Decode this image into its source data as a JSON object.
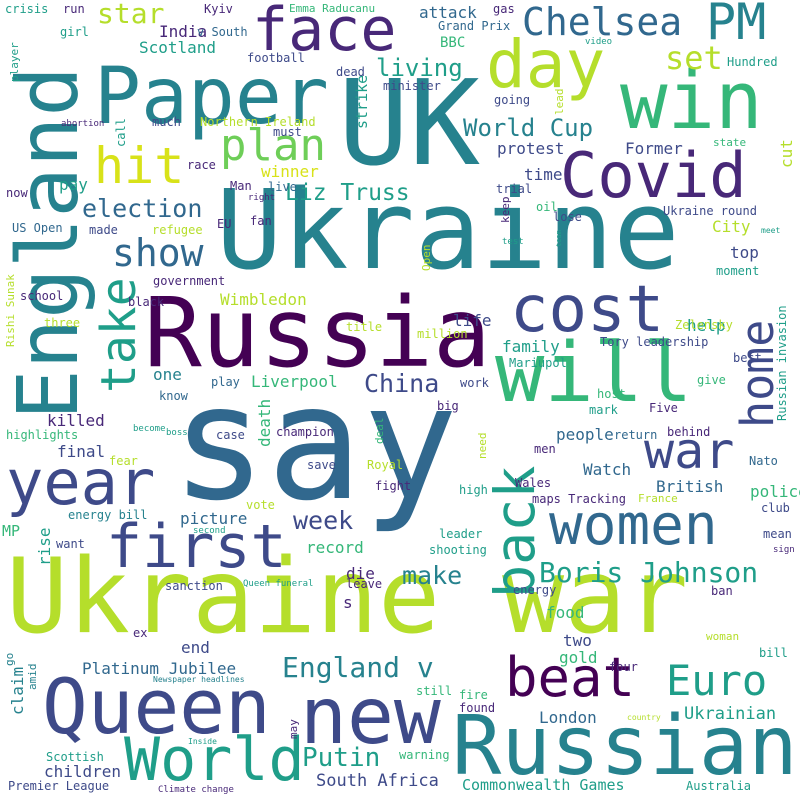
{
  "words": [
    {
      "text": "say",
      "color_class": "c3"
    },
    {
      "text": "Ukraine war",
      "color_class": "c8"
    },
    {
      "text": "Ukraine",
      "color_class": "c4"
    },
    {
      "text": "UK",
      "color_class": "c4"
    },
    {
      "text": "Russia",
      "color_class": "c0"
    },
    {
      "text": "Russian",
      "color_class": "c4"
    },
    {
      "text": "England",
      "color_class": "c4"
    },
    {
      "text": "win",
      "color_class": "c6"
    },
    {
      "text": "Paper",
      "color_class": "c4"
    },
    {
      "text": "will",
      "color_class": "c6"
    },
    {
      "text": "Queen",
      "color_class": "c2"
    },
    {
      "text": "new",
      "color_class": "c2"
    },
    {
      "text": "Covid",
      "color_class": "c1"
    },
    {
      "text": "World",
      "color_class": "c5"
    },
    {
      "text": "year",
      "color_class": "c2"
    },
    {
      "text": "women",
      "color_class": "c3"
    },
    {
      "text": "day",
      "color_class": "c8"
    },
    {
      "text": "face",
      "color_class": "c1"
    },
    {
      "text": "cost",
      "color_class": "c2"
    },
    {
      "text": "first",
      "color_class": "c2"
    },
    {
      "text": "beat",
      "color_class": "c0"
    },
    {
      "text": "hit",
      "color_class": "c9"
    },
    {
      "text": "take",
      "color_class": "c5"
    },
    {
      "text": "war",
      "color_class": "c2"
    },
    {
      "text": "home",
      "color_class": "c2"
    },
    {
      "text": "back",
      "color_class": "c5"
    },
    {
      "text": "PM",
      "color_class": "c4"
    },
    {
      "text": "Chelsea",
      "color_class": "c3"
    },
    {
      "text": "plan",
      "color_class": "c7"
    },
    {
      "text": "Euro",
      "color_class": "c5"
    },
    {
      "text": "show",
      "color_class": "c3"
    },
    {
      "text": "Boris Johnson",
      "color_class": "c5"
    },
    {
      "text": "England v",
      "color_class": "c4"
    },
    {
      "text": "election",
      "color_class": "c3"
    },
    {
      "text": "week",
      "color_class": "c2"
    },
    {
      "text": "Liz Truss",
      "color_class": "c5"
    },
    {
      "text": "China",
      "color_class": "c2"
    },
    {
      "text": "set",
      "color_class": "c8"
    },
    {
      "text": "living",
      "color_class": "c5"
    },
    {
      "text": "World Cup",
      "color_class": "c4"
    },
    {
      "text": "make",
      "color_class": "c4"
    },
    {
      "text": "Putin",
      "color_class": "c5"
    },
    {
      "text": "star",
      "color_class": "c8"
    },
    {
      "text": "children",
      "color_class": "c2"
    },
    {
      "text": "Platinum Jubilee",
      "color_class": "c3"
    },
    {
      "text": "Ukrainian",
      "color_class": "c5"
    },
    {
      "text": "South Africa",
      "color_class": "c2"
    },
    {
      "text": "Commonwealth Games",
      "color_class": "c5"
    },
    {
      "text": "Liverpool",
      "color_class": "c6"
    },
    {
      "text": "Wimbledon",
      "color_class": "c8"
    },
    {
      "text": "Scotland",
      "color_class": "c5"
    },
    {
      "text": "India",
      "color_class": "c1"
    },
    {
      "text": "City",
      "color_class": "c8"
    },
    {
      "text": "protest",
      "color_class": "c2"
    },
    {
      "text": "Former",
      "color_class": "c2"
    },
    {
      "text": "people",
      "color_class": "c3"
    },
    {
      "text": "Watch",
      "color_class": "c3"
    },
    {
      "text": "British",
      "color_class": "c3"
    },
    {
      "text": "police",
      "color_class": "c6"
    },
    {
      "text": "record",
      "color_class": "c6"
    },
    {
      "text": "killed",
      "color_class": "c1"
    },
    {
      "text": "final",
      "color_class": "c2"
    },
    {
      "text": "picture",
      "color_class": "c3"
    },
    {
      "text": "family",
      "color_class": "c5"
    },
    {
      "text": "life",
      "color_class": "c2"
    },
    {
      "text": "one",
      "color_class": "c4"
    },
    {
      "text": "time",
      "color_class": "c2"
    },
    {
      "text": "top",
      "color_class": "c2"
    },
    {
      "text": "help",
      "color_class": "c5"
    },
    {
      "text": "food",
      "color_class": "c6"
    },
    {
      "text": "gold",
      "color_class": "c6"
    },
    {
      "text": "two",
      "color_class": "c2"
    },
    {
      "text": "London",
      "color_class": "c3"
    },
    {
      "text": "end",
      "color_class": "c2"
    },
    {
      "text": "die",
      "color_class": "c1"
    },
    {
      "text": "s",
      "color_class": "c1"
    },
    {
      "text": "pay",
      "color_class": "c5"
    },
    {
      "text": "winner",
      "color_class": "c9"
    },
    {
      "text": "death",
      "color_class": "c6"
    },
    {
      "text": "cut",
      "color_class": "c8"
    },
    {
      "text": "claim",
      "color_class": "c4"
    },
    {
      "text": "rise",
      "color_class": "c5"
    },
    {
      "text": "attack",
      "color_class": "c3"
    },
    {
      "text": "Grand Prix",
      "color_class": "c3"
    },
    {
      "text": "BBC",
      "color_class": "c6"
    },
    {
      "text": "strike",
      "color_class": "c5"
    },
    {
      "text": "Northern Ireland",
      "color_class": "c8"
    },
    {
      "text": "Emma Raducanu",
      "color_class": "c6"
    },
    {
      "text": "Kyiv",
      "color_class": "c1"
    },
    {
      "text": "v South",
      "color_class": "c3"
    },
    {
      "text": "football",
      "color_class": "c2"
    },
    {
      "text": "minister",
      "color_class": "c2"
    },
    {
      "text": "gas",
      "color_class": "c1"
    },
    {
      "text": "girl",
      "color_class": "c5"
    },
    {
      "text": "run",
      "color_class": "c1"
    },
    {
      "text": "crisis",
      "color_class": "c5"
    },
    {
      "text": "player",
      "color_class": "c5"
    },
    {
      "text": "Hundred",
      "color_class": "c5"
    },
    {
      "text": "video",
      "color_class": "c5"
    },
    {
      "text": "lead",
      "color_class": "c8"
    },
    {
      "text": "going",
      "color_class": "c2"
    },
    {
      "text": "dead",
      "color_class": "c2"
    },
    {
      "text": "abortion",
      "color_class": "c1"
    },
    {
      "text": "call",
      "color_class": "c5"
    },
    {
      "text": "much",
      "color_class": "c2"
    },
    {
      "text": "must",
      "color_class": "c2"
    },
    {
      "text": "state",
      "color_class": "c6"
    },
    {
      "text": "race",
      "color_class": "c1"
    },
    {
      "text": "now",
      "color_class": "c1"
    },
    {
      "text": "Man",
      "color_class": "c1"
    },
    {
      "text": "live",
      "color_class": "c3"
    },
    {
      "text": "right",
      "color_class": "c1"
    },
    {
      "text": "trial",
      "color_class": "c2"
    },
    {
      "text": "oil",
      "color_class": "c6"
    },
    {
      "text": "fan",
      "color_class": "c1"
    },
    {
      "text": "EU",
      "color_class": "c1"
    },
    {
      "text": "US Open",
      "color_class": "c3"
    },
    {
      "text": "made",
      "color_class": "c2"
    },
    {
      "text": "refugee",
      "color_class": "c8"
    },
    {
      "text": "keep",
      "color_class": "c1"
    },
    {
      "text": "lose",
      "color_class": "c2"
    },
    {
      "text": "team",
      "color_class": "c5"
    },
    {
      "text": "test",
      "color_class": "c5"
    },
    {
      "text": "Ukraine round",
      "color_class": "c2"
    },
    {
      "text": "meet",
      "color_class": "c5"
    },
    {
      "text": "Open",
      "color_class": "c8"
    },
    {
      "text": "moment",
      "color_class": "c5"
    },
    {
      "text": "government",
      "color_class": "c1"
    },
    {
      "text": "school",
      "color_class": "c1"
    },
    {
      "text": "Rishi Sunak",
      "color_class": "c8"
    },
    {
      "text": "black",
      "color_class": "c1"
    },
    {
      "text": "title",
      "color_class": "c8"
    },
    {
      "text": "million",
      "color_class": "c8"
    },
    {
      "text": "three",
      "color_class": "c8"
    },
    {
      "text": "Zelensky",
      "color_class": "c8"
    },
    {
      "text": "Russian invasion",
      "color_class": "c5"
    },
    {
      "text": "Tory leadership",
      "color_class": "c2"
    },
    {
      "text": "best",
      "color_class": "c2"
    },
    {
      "text": "Mariupol",
      "color_class": "c5"
    },
    {
      "text": "give",
      "color_class": "c6"
    },
    {
      "text": "play",
      "color_class": "c3"
    },
    {
      "text": "know",
      "color_class": "c3"
    },
    {
      "text": "work",
      "color_class": "c2"
    },
    {
      "text": "big",
      "color_class": "c1"
    },
    {
      "text": "host",
      "color_class": "c6"
    },
    {
      "text": "mark",
      "color_class": "c5"
    },
    {
      "text": "Five",
      "color_class": "c1"
    },
    {
      "text": "highlights",
      "color_class": "c6"
    },
    {
      "text": "become",
      "color_class": "c5"
    },
    {
      "text": "boss",
      "color_class": "c5"
    },
    {
      "text": "case",
      "color_class": "c2"
    },
    {
      "text": "champion",
      "color_class": "c1"
    },
    {
      "text": "deal",
      "color_class": "c6"
    },
    {
      "text": "need",
      "color_class": "c8"
    },
    {
      "text": "return",
      "color_class": "c3"
    },
    {
      "text": "behind",
      "color_class": "c1"
    },
    {
      "text": "fear",
      "color_class": "c8"
    },
    {
      "text": "men",
      "color_class": "c1"
    },
    {
      "text": "Nato",
      "color_class": "c3"
    },
    {
      "text": "save",
      "color_class": "c2"
    },
    {
      "text": "Royal",
      "color_class": "c8"
    },
    {
      "text": "vote",
      "color_class": "c8"
    },
    {
      "text": "fight",
      "color_class": "c1"
    },
    {
      "text": "high",
      "color_class": "c5"
    },
    {
      "text": "Wales",
      "color_class": "c1"
    },
    {
      "text": "maps Tracking",
      "color_class": "c1"
    },
    {
      "text": "France",
      "color_class": "c8"
    },
    {
      "text": "club",
      "color_class": "c2"
    },
    {
      "text": "MP",
      "color_class": "c6"
    },
    {
      "text": "energy bill",
      "color_class": "c4"
    },
    {
      "text": "second",
      "color_class": "c5"
    },
    {
      "text": "leader",
      "color_class": "c5"
    },
    {
      "text": "mean",
      "color_class": "c2"
    },
    {
      "text": "want",
      "color_class": "c2"
    },
    {
      "text": "shooting",
      "color_class": "c5"
    },
    {
      "text": "sign",
      "color_class": "c1"
    },
    {
      "text": "sanction",
      "color_class": "c2"
    },
    {
      "text": "leave",
      "color_class": "c1"
    },
    {
      "text": "Queen funeral",
      "color_class": "c5"
    },
    {
      "text": "energy",
      "color_class": "c2"
    },
    {
      "text": "ban",
      "color_class": "c1"
    },
    {
      "text": "ex",
      "color_class": "c1"
    },
    {
      "text": "woman",
      "color_class": "c8"
    },
    {
      "text": "go",
      "color_class": "c4"
    },
    {
      "text": "bill",
      "color_class": "c5"
    },
    {
      "text": "amid",
      "color_class": "c4"
    },
    {
      "text": "four",
      "color_class": "c1"
    },
    {
      "text": "Newspaper headlines",
      "color_class": "c4"
    },
    {
      "text": "still",
      "color_class": "c6"
    },
    {
      "text": "fire",
      "color_class": "c6"
    },
    {
      "text": "found",
      "color_class": "c1"
    },
    {
      "text": "country",
      "color_class": "c8"
    },
    {
      "text": "Inside",
      "color_class": "c5"
    },
    {
      "text": "may",
      "color_class": "c1"
    },
    {
      "text": "Scottish",
      "color_class": "c5"
    },
    {
      "text": "warning",
      "color_class": "c6"
    },
    {
      "text": "Premier League",
      "color_class": "c2"
    },
    {
      "text": "Climate change",
      "color_class": "c1"
    },
    {
      "text": "Australia",
      "color_class": "c5"
    }
  ]
}
